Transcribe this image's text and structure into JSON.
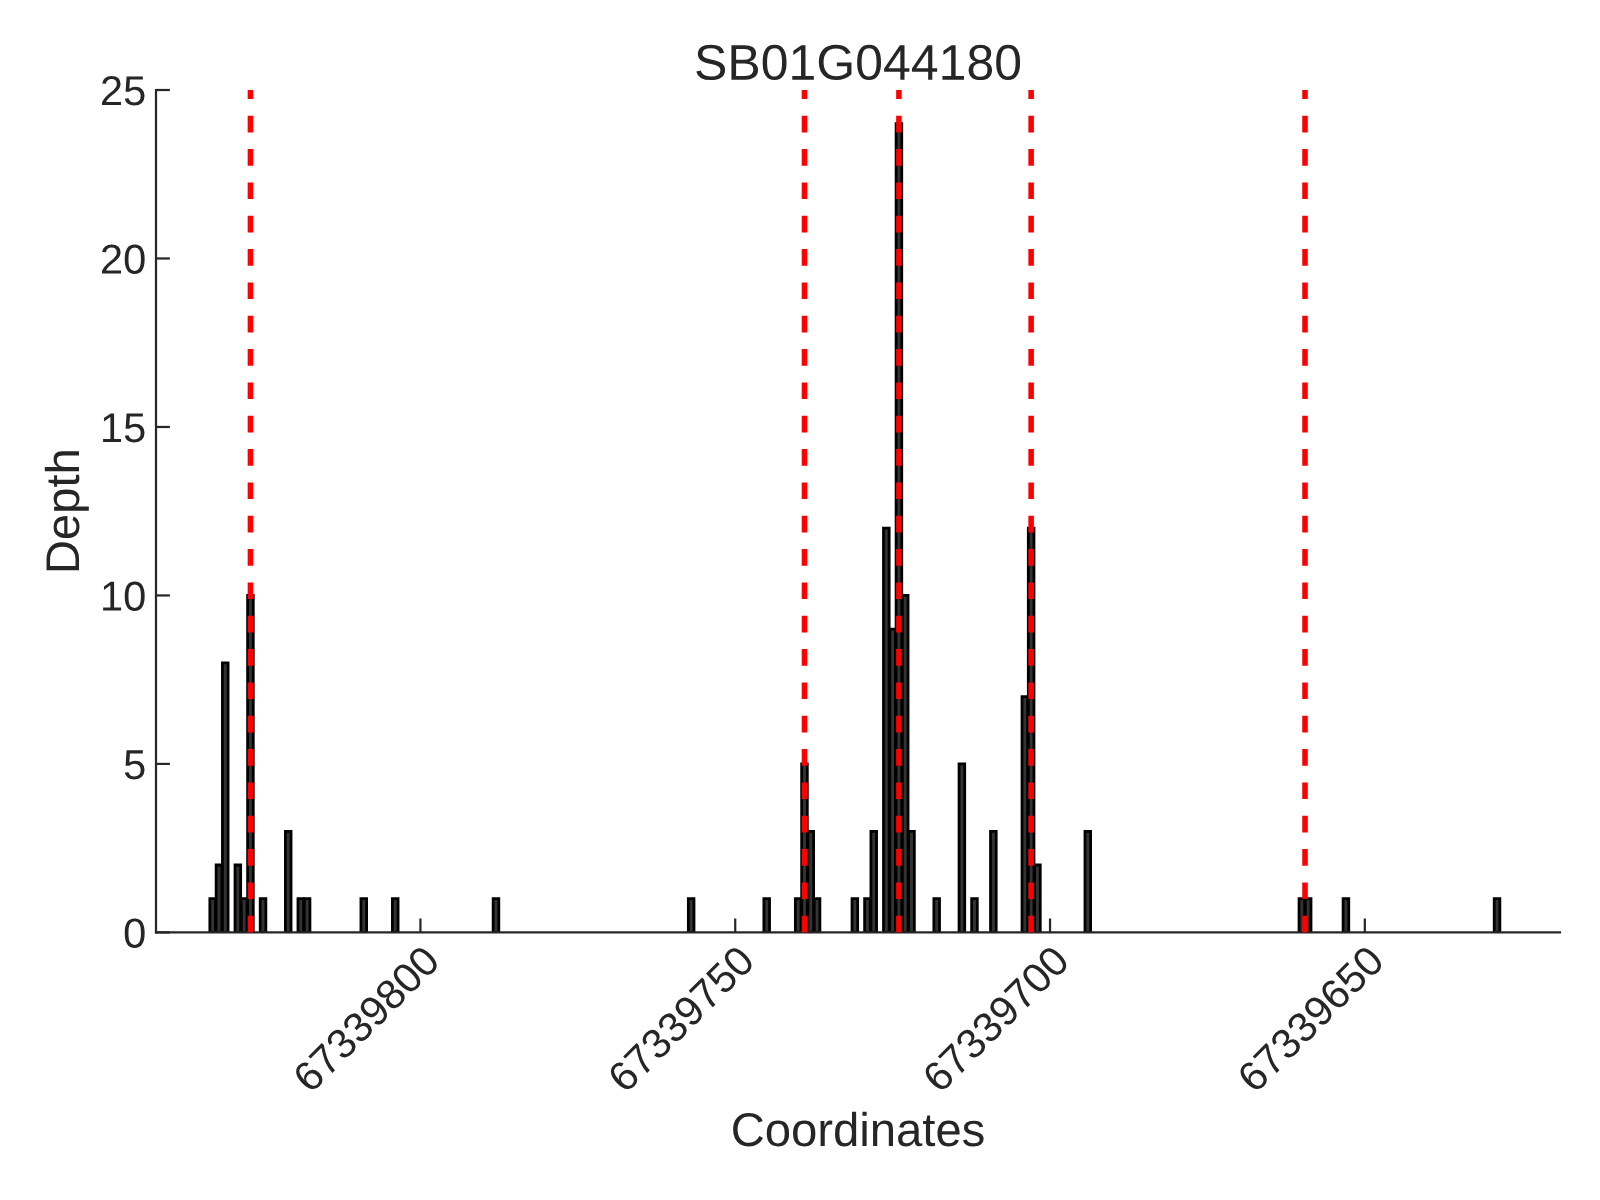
{
  "chart_data": {
    "type": "bar",
    "title": "SB01G044180",
    "xlabel": "Coordinates",
    "ylabel": "Depth",
    "x": [
      67339833,
      67339832,
      67339831,
      67339829,
      67339828,
      67339827,
      67339825,
      67339821,
      67339819,
      67339818,
      67339809,
      67339804,
      67339788,
      67339757,
      67339745,
      67339740,
      67339739,
      67339738,
      67339737,
      67339731,
      67339729,
      67339728,
      67339726,
      67339725,
      67339724,
      67339723,
      67339722,
      67339718,
      67339714,
      67339712,
      67339709,
      67339704,
      67339703,
      67339702,
      67339694,
      67339660,
      67339659,
      67339653,
      67339629
    ],
    "series": [
      {
        "color": "#333333",
        "values": [
          1,
          2,
          8,
          2,
          1,
          10,
          1,
          3,
          1,
          1,
          1,
          1,
          1,
          1,
          1,
          1,
          5,
          3,
          1,
          1,
          1,
          3,
          12,
          9,
          24,
          10,
          3,
          1,
          5,
          1,
          3,
          7,
          12,
          2,
          3,
          1,
          1,
          1,
          1
        ]
      }
    ],
    "xlim": [
      67339842,
      67339619
    ],
    "xticks": [
      67339800,
      67339750,
      67339700,
      67339650
    ],
    "ylim": [
      0,
      25
    ],
    "yticks": [
      0,
      5,
      10,
      15,
      20,
      25
    ],
    "ref_lines": [
      {
        "axis": "x",
        "value": 67339827,
        "color": "#ff0000",
        "line_style": "dashed"
      },
      {
        "axis": "x",
        "value": 67339739,
        "color": "#ff0000",
        "line_style": "dashed"
      },
      {
        "axis": "x",
        "value": 67339724,
        "color": "#ff0000",
        "line_style": "dashed"
      },
      {
        "axis": "x",
        "value": 67339703,
        "color": "#ff0000",
        "line_style": "dashed"
      },
      {
        "axis": "x",
        "value": 67339659.5,
        "color": "#ff0000",
        "line_style": "dashed"
      }
    ],
    "grid": false,
    "legend": false
  }
}
